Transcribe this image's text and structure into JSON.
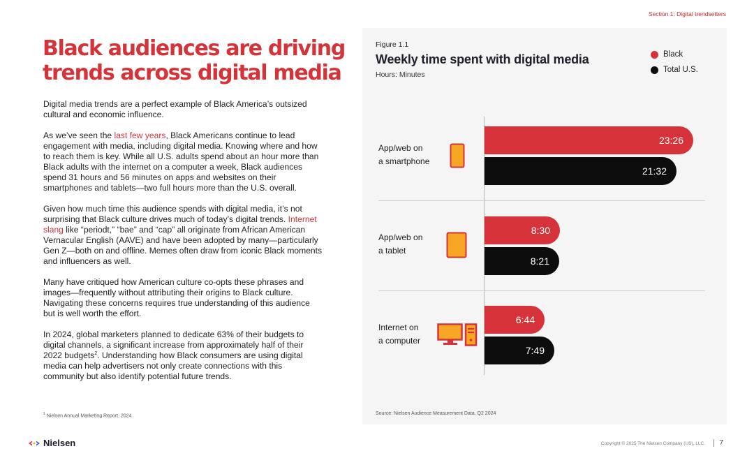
{
  "section_label": "Section 1: Digital trendsetters",
  "headline": "Black audiences are driving trends across digital media",
  "paragraphs": {
    "p1": "Digital media trends are a perfect example of Black America’s outsized cultural and economic influence.",
    "p2_before_link": "As we’ve seen the ",
    "p2_link": "last few years",
    "p2_after_link": ", Black Americans continue to lead engagement with media, including digital media. Knowing where and how to reach them is key. While all U.S. adults spend about an hour more than Black adults with the internet on a computer a week, Black audiences spend 31 hours and 56 minutes on apps and websites on their smartphones and tablets—two full hours more than the U.S. overall.",
    "p3_before_link": "Given how much time this audience spends with digital media, it’s not surprising that Black culture drives much of today’s digital trends. ",
    "p3_link": "Internet slang",
    "p3_after_link": " like “periodt,” “bae” and “cap” all originate from African American Vernacular English (AAVE) and have been adopted by many—particularly Gen Z—both on and offline. Memes often draw from iconic Black moments and influencers as well.",
    "p4": "Many have critiqued how American culture co-opts these phrases and images—frequently without attributing their origins to Black culture. Navigating these concerns requires true understanding of this audience but is well worth the effort.",
    "p5_before_sup": "In 2024, global marketers planned to dedicate 63% of their budgets to digital channels, a significant increase from approximately half of their 2022 budgets",
    "p5_sup": "2",
    "p5_after_sup": ". Understanding how Black consumers are using digital media can help advertisers not only create connections with this community but also identify potential future trends."
  },
  "footnote": {
    "sup": "1",
    "text": " Nielsen Annual Marketing Report, 2024"
  },
  "figure": {
    "number": "Figure 1.1",
    "title": "Weekly time spent with digital media",
    "subtitle": "Hours: Minutes",
    "source": "Source: Nielsen Audience Measurement Data, Q2 2024"
  },
  "chart_data": {
    "type": "bar",
    "orientation": "horizontal",
    "title": "Weekly time spent with digital media",
    "subtitle": "Hours: Minutes",
    "unit": "minutes",
    "categories": [
      "App/web on a smartphone",
      "App/web on a tablet",
      "Internet on a computer"
    ],
    "category_lines": [
      [
        "App/web on",
        "a smartphone"
      ],
      [
        "App/web on",
        "a tablet"
      ],
      [
        "Internet on",
        "a computer"
      ]
    ],
    "category_icons": [
      "smartphone-icon",
      "tablet-icon",
      "computer-icon"
    ],
    "series": [
      {
        "name": "Black",
        "color": "#d63239",
        "values": [
          1406,
          510,
          404
        ],
        "labels": [
          "23:26",
          "8:30",
          "6:44"
        ]
      },
      {
        "name": "Total U.S.",
        "color": "#0d0d0d",
        "values": [
          1292,
          501,
          469
        ],
        "labels": [
          "21:32",
          "8:21",
          "7:49"
        ]
      }
    ],
    "xlim": [
      0,
      1406
    ],
    "legend": "top-right",
    "grid": false
  },
  "colors": {
    "accent": "#d43439",
    "black_series": "#d63239",
    "total_series": "#0d0d0d",
    "icon_fill": "#f6a623",
    "icon_stroke": "#d63239"
  },
  "footer": {
    "logo_text": "Nielsen",
    "copyright": "Copyright © 2025 The Nielsen Company (US), LLC.",
    "page_number": "7"
  }
}
